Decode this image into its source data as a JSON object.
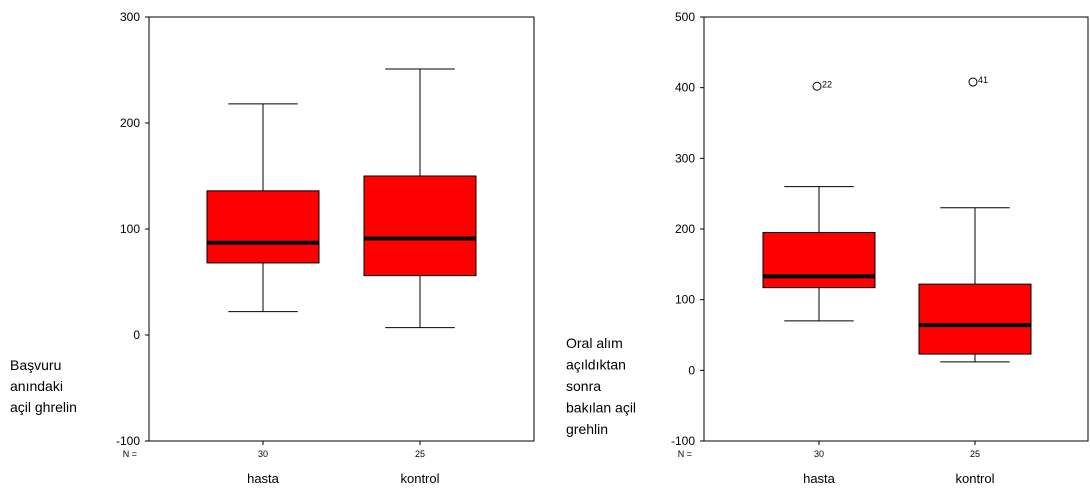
{
  "chart_data": [
    {
      "type": "boxplot",
      "ylabel": "Başvuru\nanındaki\naçil ghrelin",
      "ylim": [
        -100,
        300
      ],
      "yticks": [
        -100,
        0,
        100,
        200,
        300
      ],
      "n_label": "N =",
      "categories": [
        "hasta",
        "kontrol"
      ],
      "n": [
        "30",
        "25"
      ],
      "box_color": "#ff0000",
      "boxes": [
        {
          "category": "hasta",
          "min": 22,
          "q1": 68,
          "median": 87,
          "q3": 136,
          "max": 218,
          "outliers": []
        },
        {
          "category": "kontrol",
          "min": 7,
          "q1": 56,
          "median": 91,
          "q3": 150,
          "max": 251,
          "outliers": []
        }
      ]
    },
    {
      "type": "boxplot",
      "ylabel": "Oral alım\naçıldıktan\nsonra\nbakılan açil\ngrehlin",
      "ylim": [
        -100,
        500
      ],
      "yticks": [
        -100,
        0,
        100,
        200,
        300,
        400,
        500
      ],
      "n_label": "N =",
      "categories": [
        "hasta",
        "kontrol"
      ],
      "n": [
        "30",
        "25"
      ],
      "box_color": "#ff0000",
      "boxes": [
        {
          "category": "hasta",
          "min": 70,
          "q1": 117,
          "median": 133,
          "q3": 195,
          "max": 260,
          "outliers": [
            {
              "value": 402,
              "label": "22"
            }
          ]
        },
        {
          "category": "kontrol",
          "min": 12,
          "q1": 23,
          "median": 64,
          "q3": 122,
          "max": 230,
          "outliers": [
            {
              "value": 408,
              "label": "41"
            }
          ]
        }
      ]
    }
  ]
}
